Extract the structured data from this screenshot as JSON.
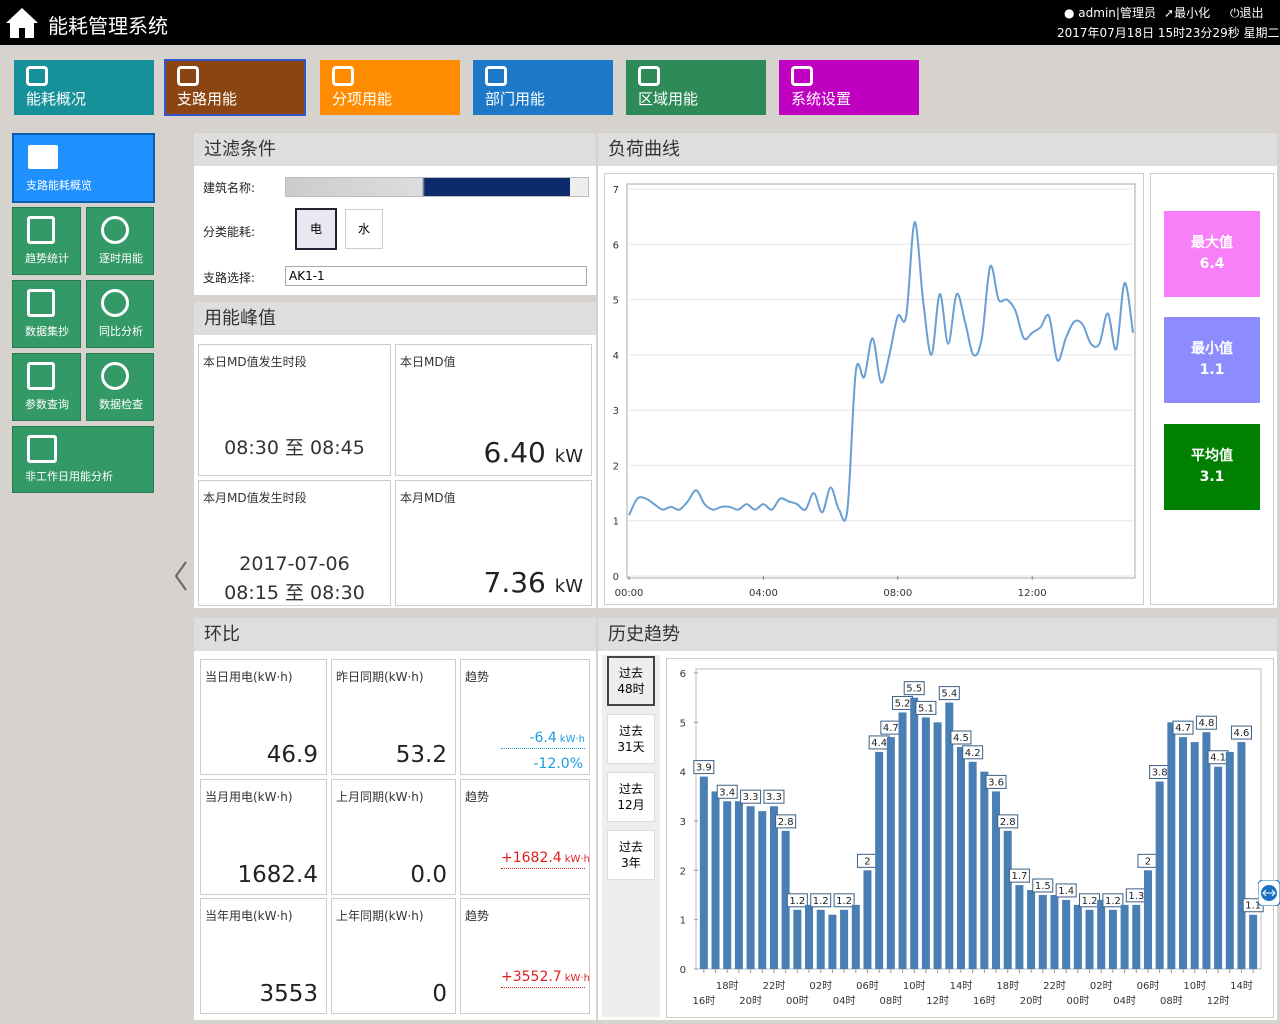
{
  "header": {
    "title": "能耗管理系统",
    "user": "admin|管理员",
    "minimize": "最小化",
    "logout": "退出",
    "datetime": "2017年07月18日 15时23分29秒 星期二"
  },
  "nav": [
    "能耗概况",
    "支路用能",
    "分项用能",
    "部门用能",
    "区域用能",
    "系统设置"
  ],
  "sidebar": {
    "main": "支路能耗概览",
    "tiles": [
      "趋势统计",
      "逐时用能",
      "数据集抄",
      "同比分析",
      "参数查询",
      "数据检查"
    ],
    "wide": "非工作日用能分析"
  },
  "filter": {
    "title": "过滤条件",
    "building_label": "建筑名称:",
    "category_label": "分类能耗:",
    "options": [
      "电",
      "水"
    ],
    "branch_label": "支路选择:",
    "branch_value": "AK1-1"
  },
  "peak": {
    "title": "用能峰值",
    "day_period_label": "本日MD值发生时段",
    "day_start": "08:30",
    "to": "至",
    "day_end": "08:45",
    "day_value_label": "本日MD值",
    "day_value": "6.40",
    "unit": "kW",
    "month_period_label": "本月MD值发生时段",
    "month_date": "2017-07-06",
    "month_start": "08:15",
    "month_end": "08:30",
    "month_value_label": "本月MD值",
    "month_value": "7.36"
  },
  "load": {
    "title": "负荷曲线",
    "stats": [
      {
        "label": "最大值",
        "value": 6.4,
        "color": "#f77ff7"
      },
      {
        "label": "最小值",
        "value": 1.1,
        "color": "#8c8cff"
      },
      {
        "label": "平均值",
        "value": 3.1,
        "color": "#008000"
      }
    ]
  },
  "chart_data": [
    {
      "type": "line",
      "x": [
        "00:00",
        "00:15",
        "00:30",
        "00:45",
        "01:00",
        "01:15",
        "01:30",
        "01:45",
        "02:00",
        "02:15",
        "02:30",
        "02:45",
        "03:00",
        "03:15",
        "03:30",
        "03:45",
        "04:00",
        "04:15",
        "04:30",
        "04:45",
        "05:00",
        "05:15",
        "05:30",
        "05:45",
        "06:00",
        "06:15",
        "06:30",
        "06:45",
        "07:00",
        "07:15",
        "07:30",
        "07:45",
        "08:00",
        "08:15",
        "08:30",
        "08:45",
        "09:00",
        "09:15",
        "09:30",
        "09:45",
        "10:00",
        "10:15",
        "10:30",
        "10:45",
        "11:00",
        "11:15",
        "11:30",
        "11:45",
        "12:00",
        "12:15",
        "12:30",
        "12:45",
        "13:00",
        "13:15",
        "13:30",
        "13:45",
        "14:00",
        "14:15",
        "14:30",
        "14:45",
        "15:00"
      ],
      "values": [
        1.1,
        1.4,
        1.4,
        1.3,
        1.2,
        1.25,
        1.2,
        1.35,
        1.55,
        1.3,
        1.2,
        1.25,
        1.25,
        1.2,
        1.3,
        1.2,
        1.3,
        1.2,
        1.4,
        1.35,
        1.3,
        1.2,
        1.5,
        1.15,
        1.6,
        1.2,
        1.2,
        3.7,
        3.6,
        4.3,
        3.5,
        4.0,
        4.7,
        4.7,
        6.4,
        5.0,
        4.0,
        5.1,
        4.2,
        5.1,
        4.6,
        4.0,
        4.3,
        5.6,
        5.0,
        5.0,
        4.8,
        4.3,
        4.4,
        4.5,
        4.7,
        3.9,
        4.3,
        4.6,
        4.55,
        4.2,
        4.2,
        4.75,
        4.1,
        5.3,
        4.4
      ],
      "color": "#6a9fd4",
      "xlim": [
        "00:00",
        "15:00"
      ],
      "xticks": [
        "00:00",
        "04:00",
        "08:00",
        "12:00"
      ],
      "ylim": [
        0,
        7
      ],
      "yticks": [
        0,
        1,
        2,
        3,
        4,
        5,
        6,
        7
      ],
      "grid": true
    },
    {
      "type": "bar",
      "categories": [
        "16时",
        null,
        "18时",
        null,
        "20时",
        null,
        "22时",
        null,
        "00时",
        null,
        "02时",
        null,
        "04时",
        null,
        "06时",
        null,
        "08时",
        null,
        "10时",
        null,
        "12时",
        null,
        "14时",
        null,
        "16时",
        null,
        "18时",
        null,
        "20时",
        null,
        "22时",
        null,
        "00时",
        null,
        "02时",
        null,
        "04时",
        null,
        "06时",
        null,
        "08时",
        null,
        "10时",
        null,
        "12时",
        null,
        "14时",
        null
      ],
      "values": [
        3.9,
        3.6,
        3.4,
        3.4,
        3.3,
        3.2,
        3.3,
        2.8,
        1.2,
        1.3,
        1.2,
        1.1,
        1.2,
        1.3,
        2,
        4.4,
        4.7,
        5.2,
        5.5,
        5.1,
        5.0,
        5.4,
        4.5,
        4.2,
        4.0,
        3.6,
        2.8,
        1.7,
        1.6,
        1.5,
        1.5,
        1.4,
        1.3,
        1.2,
        1.4,
        1.2,
        1.3,
        1.3,
        2,
        3.8,
        5.0,
        4.7,
        4.6,
        4.8,
        4.1,
        4.4,
        4.6,
        1.1
      ],
      "value_labels": [
        "3.9",
        null,
        "3.4",
        null,
        "3.3",
        null,
        "3.3",
        "2.8",
        "1.2",
        null,
        "1.2",
        null,
        "1.2",
        null,
        "2",
        "4.4",
        "4.7",
        "5.2",
        "5.5",
        "5.1",
        null,
        "5.4",
        "4.5",
        "4.2",
        null,
        "3.6",
        "2.8",
        "1.7",
        null,
        "1.5",
        null,
        "1.4",
        null,
        "1.2",
        null,
        "1.2",
        null,
        "1.3",
        "2",
        "3.8",
        null,
        "4.7",
        null,
        "4.8",
        "4.1",
        null,
        "4.6",
        "1.1"
      ],
      "color": "#4a7fb5",
      "ylim": [
        0,
        6
      ],
      "yticks": [
        0,
        1,
        2,
        3,
        4,
        5,
        6
      ],
      "grid": false
    }
  ],
  "mom": {
    "title": "环比",
    "unit": "kW·h",
    "rows": [
      {
        "current_label": "当日用电(kW·h)",
        "current": "46.9",
        "prev_label": "昨日同期(kW·h)",
        "prev": "53.2",
        "trend_label": "趋势",
        "diff": "-6.4",
        "pct": "-12.0%"
      },
      {
        "current_label": "当月用电(kW·h)",
        "current": "1682.4",
        "prev_label": "上月同期(kW·h)",
        "prev": "0.0",
        "trend_label": "趋势",
        "diff": "+1682.4"
      },
      {
        "current_label": "当年用电(kW·h)",
        "current": "3553",
        "prev_label": "上年同期(kW·h)",
        "prev": "0",
        "trend_label": "趋势",
        "diff": "+3552.7"
      }
    ]
  },
  "history": {
    "title": "历史趋势",
    "ranges": [
      "过去48时",
      "过去31天",
      "过去12月",
      "过去3年"
    ]
  }
}
